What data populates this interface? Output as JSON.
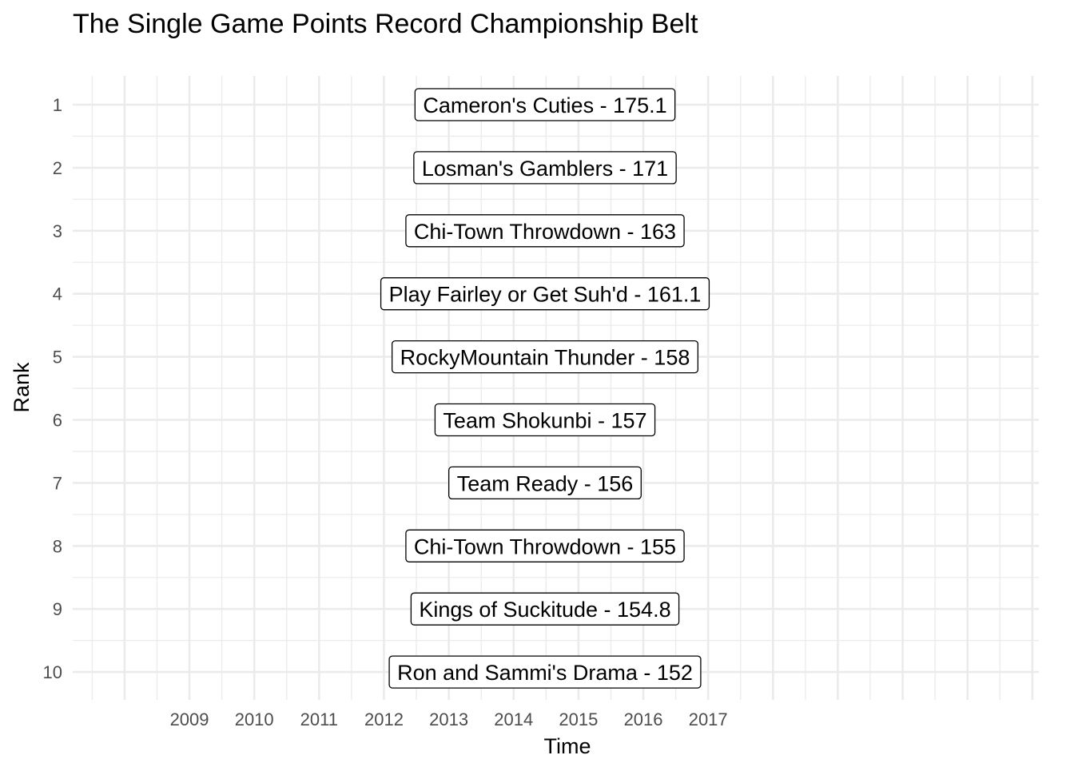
{
  "chart_data": {
    "type": "table",
    "title": "The Single Game Points Record Championship Belt",
    "xlabel": "Time",
    "ylabel": "Rank",
    "x_ticks": [
      "2009",
      "2010",
      "2011",
      "2012",
      "2013",
      "2014",
      "2015",
      "2016",
      "2017"
    ],
    "xlim": [
      2007.2,
      2022.1
    ],
    "grid": true,
    "rows": [
      {
        "rank": 1,
        "team": "Cameron's Cuties",
        "points": 175.1,
        "label": "Cameron's Cuties - 175.1"
      },
      {
        "rank": 2,
        "team": "Losman's Gamblers",
        "points": 171,
        "label": "Losman's Gamblers - 171"
      },
      {
        "rank": 3,
        "team": "Chi-Town Throwdown",
        "points": 163,
        "label": "Chi-Town Throwdown - 163"
      },
      {
        "rank": 4,
        "team": "Play Fairley or Get Suh'd",
        "points": 161.1,
        "label": "Play Fairley or Get Suh'd - 161.1"
      },
      {
        "rank": 5,
        "team": "RockyMountain Thunder",
        "points": 158,
        "label": "RockyMountain Thunder - 158"
      },
      {
        "rank": 6,
        "team": "Team Shokunbi",
        "points": 157,
        "label": "Team Shokunbi - 157"
      },
      {
        "rank": 7,
        "team": "Team Ready",
        "points": 156,
        "label": "Team Ready - 156"
      },
      {
        "rank": 8,
        "team": "Chi-Town Throwdown",
        "points": 155,
        "label": "Chi-Town Throwdown - 155"
      },
      {
        "rank": 9,
        "team": "Kings of Suckitude",
        "points": 154.8,
        "label": "Kings of Suckitude - 154.8"
      },
      {
        "rank": 10,
        "team": "Ron and Sammi's Drama",
        "points": 152,
        "label": "Ron and Sammi's Drama - 152"
      }
    ]
  }
}
